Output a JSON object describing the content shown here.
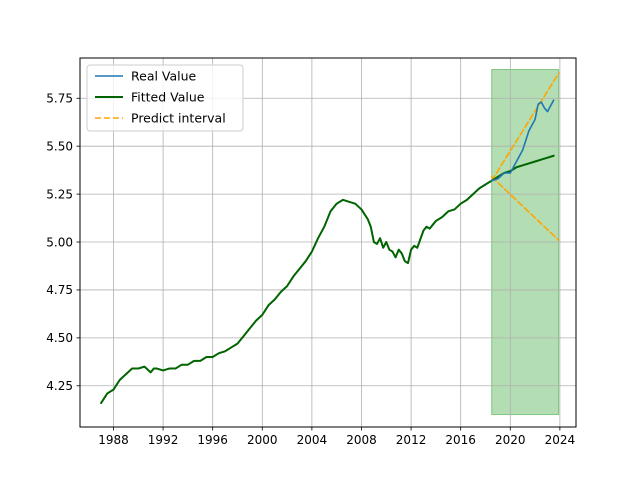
{
  "chart_data": {
    "type": "line",
    "title": "",
    "xlabel": "",
    "ylabel": "",
    "xlim": [
      1985.3,
      2025.3
    ],
    "ylim": [
      4.035,
      5.96
    ],
    "grid": true,
    "legend_position": "top-left",
    "x_ticks": [
      1988,
      1992,
      1996,
      2000,
      2004,
      2008,
      2012,
      2016,
      2020,
      2024
    ],
    "x_tick_labels": [
      "1988",
      "1992",
      "1996",
      "2000",
      "2004",
      "2008",
      "2012",
      "2016",
      "2020",
      "2024"
    ],
    "y_ticks": [
      4.25,
      4.5,
      4.75,
      5.0,
      5.25,
      5.5,
      5.75
    ],
    "y_tick_labels": [
      "4.25",
      "4.50",
      "4.75",
      "5.00",
      "5.25",
      "5.50",
      "5.75"
    ],
    "shaded_region": {
      "x": [
        2018.5,
        2023.9
      ],
      "y": [
        4.1,
        5.9
      ],
      "color": "#2ca02c",
      "opacity": 0.36
    },
    "series": [
      {
        "name": "Real Value",
        "color": "#1f77b4",
        "style": "solid",
        "x": [
          2018.5,
          2019.0,
          2019.5,
          2020.0,
          2020.5,
          2021.0,
          2021.5,
          2022.0,
          2022.25,
          2022.5,
          2022.75,
          2023.0,
          2023.25,
          2023.5
        ],
        "y": [
          5.32,
          5.33,
          5.36,
          5.36,
          5.42,
          5.48,
          5.58,
          5.64,
          5.72,
          5.73,
          5.7,
          5.68,
          5.71,
          5.74
        ]
      },
      {
        "name": "Fitted Value",
        "color": "#006400",
        "style": "solid",
        "x": [
          1987.0,
          1987.5,
          1988.0,
          1988.5,
          1989.0,
          1989.5,
          1990.0,
          1990.5,
          1991.0,
          1991.25,
          1991.5,
          1992.0,
          1992.5,
          1993.0,
          1993.5,
          1994.0,
          1994.5,
          1995.0,
          1995.5,
          1996.0,
          1996.5,
          1997.0,
          1997.5,
          1998.0,
          1998.5,
          1999.0,
          1999.5,
          2000.0,
          2000.5,
          2001.0,
          2001.5,
          2002.0,
          2002.5,
          2003.0,
          2003.5,
          2004.0,
          2004.5,
          2005.0,
          2005.5,
          2006.0,
          2006.5,
          2007.0,
          2007.5,
          2008.0,
          2008.5,
          2008.75,
          2009.0,
          2009.25,
          2009.5,
          2009.75,
          2010.0,
          2010.25,
          2010.5,
          2010.75,
          2011.0,
          2011.25,
          2011.5,
          2011.75,
          2012.0,
          2012.25,
          2012.5,
          2013.0,
          2013.25,
          2013.5,
          2014.0,
          2014.5,
          2015.0,
          2015.5,
          2016.0,
          2016.5,
          2017.0,
          2017.5,
          2018.0,
          2018.5,
          2019.0,
          2019.5,
          2020.0,
          2020.5,
          2021.0,
          2021.5,
          2022.0,
          2022.5,
          2023.0,
          2023.5
        ],
        "y": [
          4.16,
          4.21,
          4.23,
          4.28,
          4.31,
          4.34,
          4.34,
          4.35,
          4.32,
          4.34,
          4.34,
          4.33,
          4.34,
          4.34,
          4.36,
          4.36,
          4.38,
          4.38,
          4.4,
          4.4,
          4.42,
          4.43,
          4.45,
          4.47,
          4.51,
          4.55,
          4.59,
          4.62,
          4.67,
          4.7,
          4.74,
          4.77,
          4.82,
          4.86,
          4.9,
          4.95,
          5.02,
          5.08,
          5.16,
          5.2,
          5.22,
          5.21,
          5.2,
          5.17,
          5.12,
          5.08,
          5.0,
          4.99,
          5.02,
          4.97,
          5.0,
          4.96,
          4.95,
          4.92,
          4.96,
          4.94,
          4.9,
          4.89,
          4.96,
          4.98,
          4.97,
          5.06,
          5.08,
          5.07,
          5.11,
          5.13,
          5.16,
          5.17,
          5.2,
          5.22,
          5.25,
          5.28,
          5.3,
          5.32,
          5.34,
          5.36,
          5.37,
          5.39,
          5.4,
          5.41,
          5.42,
          5.43,
          5.44,
          5.45
        ]
      },
      {
        "name": "Predict interval",
        "color": "#ffa500",
        "style": "dashed",
        "x": [
          2018.5,
          2023.9
        ],
        "y": [
          5.32,
          5.88
        ]
      },
      {
        "name": "",
        "color": "#ffa500",
        "style": "dashed",
        "x": [
          2018.5,
          2023.9
        ],
        "y": [
          5.34,
          5.01
        ]
      }
    ]
  }
}
